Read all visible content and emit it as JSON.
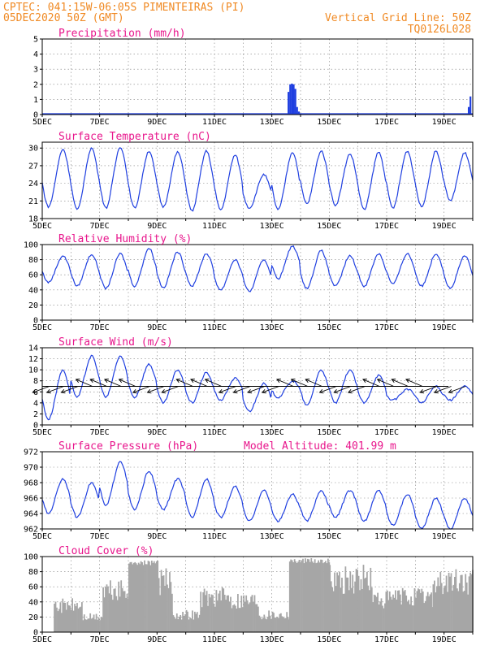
{
  "header": {
    "line1_left": "CPTEC:  041:15W-06:05S  PIMENTEIRAS (PI)",
    "line2_left": "05DEC2020 50Z (GMT)",
    "line1_right": "Vertical Grid Line: 50Z",
    "line2_right": "TQ0126L028"
  },
  "colors": {
    "header": "#f08a24",
    "title": "#e8168c",
    "series": "#1f3fe0",
    "cloud": "#a6a6a6",
    "grid": "#808080"
  },
  "chart_data": [
    {
      "type": "bar",
      "title": "Precipitation (mm/h)",
      "x_tick_labels": [
        "5DEC",
        "7DEC",
        "9DEC",
        "11DEC",
        "13DEC",
        "15DEC",
        "17DEC",
        "19DEC"
      ],
      "xlim_days": [
        5,
        20
      ],
      "ylim": [
        0,
        5
      ],
      "y_ticks": [
        0,
        1,
        2,
        3,
        4,
        5
      ],
      "grid": true,
      "bars": [
        {
          "day": 13.58,
          "value": 1.5
        },
        {
          "day": 13.64,
          "value": 2.0
        },
        {
          "day": 13.7,
          "value": 2.05
        },
        {
          "day": 13.76,
          "value": 2.0
        },
        {
          "day": 13.82,
          "value": 1.7
        },
        {
          "day": 13.88,
          "value": 0.5
        },
        {
          "day": 13.94,
          "value": 0.2
        },
        {
          "day": 19.86,
          "value": 0.5
        },
        {
          "day": 19.92,
          "value": 1.2
        }
      ],
      "baseline_value": 0.05
    },
    {
      "type": "line",
      "title": "Surface Temperature (nC)",
      "x_tick_labels": [
        "5DEC",
        "7DEC",
        "9DEC",
        "11DEC",
        "13DEC",
        "15DEC",
        "17DEC",
        "19DEC"
      ],
      "xlim_days": [
        5,
        20
      ],
      "ylim": [
        18,
        31
      ],
      "y_ticks": [
        18,
        21,
        24,
        27,
        30
      ],
      "grid": true,
      "day_max": [
        29.8,
        30.0,
        30.2,
        29.5,
        29.3,
        29.5,
        28.8,
        25.5,
        29.3,
        29.5,
        29.0,
        29.3,
        29.5,
        29.5,
        29.2
      ],
      "day_min": [
        20.0,
        19.5,
        19.8,
        19.8,
        20.0,
        19.3,
        19.5,
        19.8,
        19.5,
        20.5,
        20.3,
        19.5,
        19.8,
        20.0,
        21.0
      ]
    },
    {
      "type": "line",
      "title": "Relative Humidity (%)",
      "x_tick_labels": [
        "5DEC",
        "7DEC",
        "9DEC",
        "11DEC",
        "13DEC",
        "15DEC",
        "17DEC",
        "19DEC"
      ],
      "xlim_days": [
        5,
        20
      ],
      "ylim": [
        0,
        100
      ],
      "y_ticks": [
        0,
        20,
        40,
        60,
        80,
        100
      ],
      "grid": true,
      "day_max": [
        85,
        87,
        88,
        95,
        90,
        88,
        80,
        80,
        98,
        92,
        85,
        88,
        88,
        88,
        85
      ],
      "day_min": [
        50,
        45,
        42,
        45,
        43,
        45,
        40,
        38,
        55,
        42,
        45,
        45,
        48,
        45,
        42
      ]
    },
    {
      "type": "line",
      "title": "Surface Wind (m/s)",
      "x_tick_labels": [
        "5DEC",
        "7DEC",
        "9DEC",
        "11DEC",
        "13DEC",
        "15DEC",
        "17DEC",
        "19DEC"
      ],
      "xlim_days": [
        5,
        20
      ],
      "ylim": [
        0,
        14
      ],
      "y_ticks": [
        0,
        2,
        4,
        6,
        8,
        10,
        12,
        14
      ],
      "grid": true,
      "day_max": [
        10.0,
        12.5,
        12.5,
        11.0,
        10.0,
        9.5,
        8.5,
        7.5,
        8.0,
        10.0,
        10.0,
        9.0,
        6.5,
        7.0,
        7.0
      ],
      "day_min": [
        1.0,
        5.0,
        5.0,
        5.0,
        4.0,
        4.0,
        4.5,
        2.5,
        5.0,
        3.5,
        4.0,
        4.0,
        4.5,
        4.0,
        4.5
      ],
      "wind_arrows": "direction vectors along 7 m/s line"
    },
    {
      "type": "line",
      "title": "Surface Pressure (hPa)",
      "annotation": "Model Altitude: 401.99 m",
      "x_tick_labels": [
        "5DEC",
        "7DEC",
        "9DEC",
        "11DEC",
        "13DEC",
        "15DEC",
        "17DEC",
        "19DEC"
      ],
      "xlim_days": [
        5,
        20
      ],
      "ylim": [
        962,
        972
      ],
      "y_ticks": [
        962,
        964,
        966,
        968,
        970,
        972
      ],
      "grid": true,
      "day_max": [
        968.5,
        968.0,
        970.8,
        969.5,
        968.5,
        968.5,
        967.5,
        967.0,
        966.5,
        967.0,
        967.0,
        967.0,
        966.5,
        966.0,
        966.0
      ],
      "day_min": [
        964.0,
        963.5,
        965.0,
        964.5,
        964.5,
        963.5,
        963.5,
        963.0,
        963.0,
        963.0,
        963.5,
        963.0,
        962.5,
        962.0,
        962.0
      ]
    },
    {
      "type": "area",
      "title": "Cloud Cover (%)",
      "x_tick_labels": [
        "5DEC",
        "7DEC",
        "9DEC",
        "11DEC",
        "13DEC",
        "15DEC",
        "17DEC",
        "19DEC"
      ],
      "xlim_days": [
        5,
        20
      ],
      "ylim": [
        0,
        100
      ],
      "y_ticks": [
        0,
        20,
        40,
        60,
        80,
        100
      ],
      "grid": true,
      "segments": [
        {
          "from": 5.0,
          "to": 5.4,
          "value": 0
        },
        {
          "from": 5.4,
          "to": 6.4,
          "value": 45
        },
        {
          "from": 6.4,
          "to": 7.1,
          "value": 25
        },
        {
          "from": 7.1,
          "to": 8.0,
          "value": 70
        },
        {
          "from": 8.0,
          "to": 9.0,
          "value": 95
        },
        {
          "from": 9.0,
          "to": 9.5,
          "value": 85
        },
        {
          "from": 9.5,
          "to": 10.5,
          "value": 30
        },
        {
          "from": 10.5,
          "to": 11.5,
          "value": 60
        },
        {
          "from": 11.5,
          "to": 12.5,
          "value": 55
        },
        {
          "from": 12.5,
          "to": 13.6,
          "value": 30
        },
        {
          "from": 13.6,
          "to": 15.0,
          "value": 98
        },
        {
          "from": 15.0,
          "to": 16.5,
          "value": 90
        },
        {
          "from": 16.5,
          "to": 17.2,
          "value": 55
        },
        {
          "from": 17.2,
          "to": 18.6,
          "value": 60
        },
        {
          "from": 18.6,
          "to": 20.0,
          "value": 85
        }
      ]
    }
  ]
}
